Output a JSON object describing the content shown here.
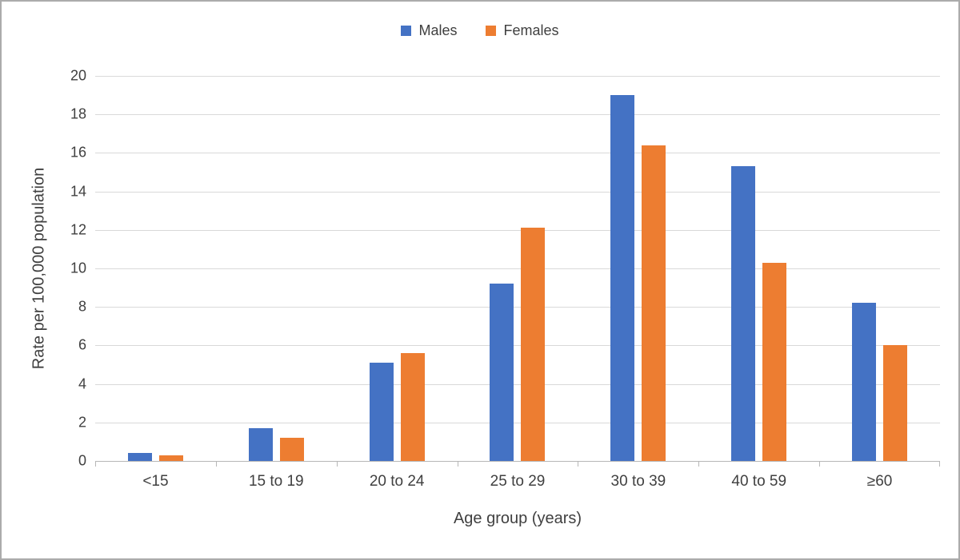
{
  "chart_data": {
    "type": "bar",
    "categories": [
      "<15",
      "15 to 19",
      "20 to 24",
      "25 to 29",
      "30 to 39",
      "40 to 59",
      "≥60"
    ],
    "series": [
      {
        "name": "Males",
        "color": "#4472C4",
        "values": [
          0.4,
          1.7,
          5.1,
          9.2,
          19.0,
          15.3,
          8.2
        ]
      },
      {
        "name": "Females",
        "color": "#ED7D31",
        "values": [
          0.3,
          1.2,
          5.6,
          12.1,
          16.4,
          10.3,
          6.0
        ]
      }
    ],
    "title": "",
    "xlabel": "Age group (years)",
    "ylabel": "Rate per 100,000 population",
    "ylim": [
      0,
      20
    ],
    "ytick_step": 2,
    "grid": true,
    "legend_position": "top",
    "colors": {
      "gridline": "#d9d9d9",
      "axis_line": "#b7b7b7",
      "text": "#404040"
    }
  }
}
